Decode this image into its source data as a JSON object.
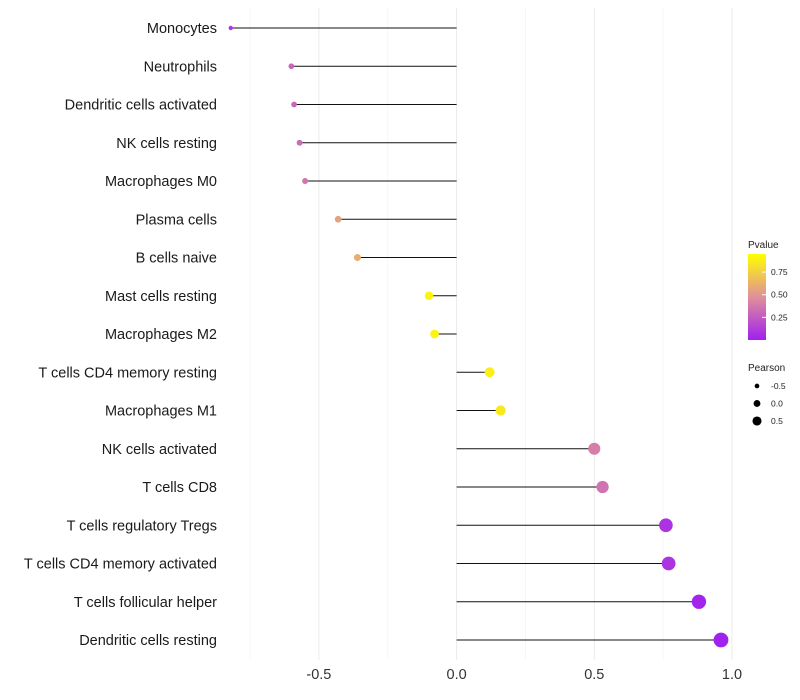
{
  "chart_data": {
    "type": "lollipop",
    "title": "",
    "xlabel": "",
    "ylabel": "",
    "xlim": [
      -0.83,
      1.0
    ],
    "x_ticks": [
      -0.5,
      0.0,
      0.5,
      1.0
    ],
    "x_tick_labels": [
      "-0.5",
      "0.0",
      "0.5",
      "1.0"
    ],
    "categories": [
      "Monocytes",
      "Neutrophils",
      "Dendritic cells activated",
      "NK cells resting",
      "Macrophages M0",
      "Plasma cells",
      "B cells naive",
      "Mast cells resting",
      "Macrophages M2",
      "T cells CD4 memory resting",
      "Macrophages M1",
      "NK cells activated",
      "T cells CD8",
      "T cells regulatory  Tregs ",
      "T cells CD4 memory activated",
      "T cells follicular helper",
      "Dendritic cells resting"
    ],
    "pearson": [
      -0.82,
      -0.6,
      -0.59,
      -0.57,
      -0.55,
      -0.43,
      -0.36,
      -0.1,
      -0.08,
      0.12,
      0.16,
      0.5,
      0.53,
      0.76,
      0.77,
      0.88,
      0.96
    ],
    "pvalue": [
      0.1,
      0.3,
      0.3,
      0.32,
      0.35,
      0.55,
      0.6,
      0.9,
      0.9,
      0.88,
      0.85,
      0.4,
      0.35,
      0.08,
      0.08,
      0.02,
      0.01
    ],
    "legend": {
      "color": {
        "title": "Pvalue",
        "ticks": [
          0.25,
          0.5,
          0.75
        ],
        "tick_labels": [
          "0.25",
          "0.50",
          "0.75"
        ],
        "range": [
          0.0,
          0.95
        ],
        "colors": [
          "#A020F0",
          "#F7E625",
          "#FFFF00"
        ]
      },
      "size": {
        "title": "Pearson",
        "values": [
          -0.5,
          0.0,
          0.5
        ],
        "labels": [
          "-0.5",
          "0.0",
          "0.5"
        ]
      }
    }
  }
}
